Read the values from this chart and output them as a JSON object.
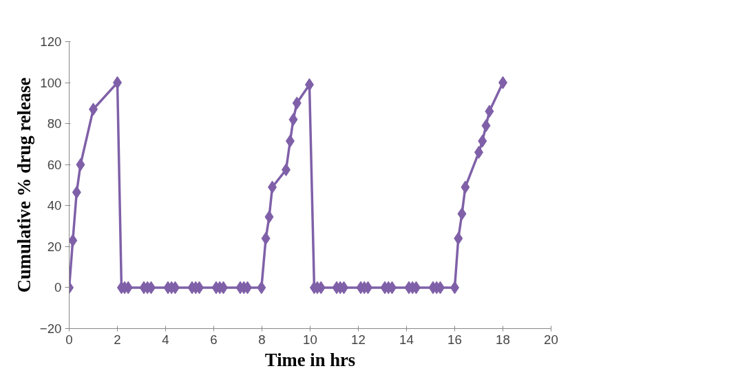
{
  "chart_data": {
    "type": "line",
    "xlabel": "Time in hrs",
    "ylabel": "Cumulative % drug release",
    "xlim": [
      0,
      20
    ],
    "xticks": [
      0,
      2,
      4,
      6,
      8,
      10,
      12,
      14,
      16,
      18,
      20
    ],
    "ylim": [
      -20,
      120
    ],
    "yticks": [
      -20,
      0,
      20,
      40,
      60,
      80,
      100,
      120
    ],
    "grid": false,
    "marker": "diamond",
    "line_style": "solid",
    "series": [
      {
        "color": "#7f60a8",
        "x": [
          0,
          0.15,
          0.31,
          0.47,
          1.0,
          2.0,
          2.17,
          2.3,
          2.45,
          3.1,
          3.25,
          3.4,
          4.1,
          4.25,
          4.4,
          5.1,
          5.25,
          5.4,
          6.1,
          6.25,
          6.4,
          7.1,
          7.25,
          7.4,
          7.98,
          8.16,
          8.3,
          8.43,
          9.0,
          9.17,
          9.3,
          9.45,
          9.97,
          10.17,
          10.3,
          10.45,
          11.1,
          11.25,
          11.4,
          12.1,
          12.25,
          12.4,
          13.1,
          13.25,
          13.4,
          14.1,
          14.25,
          14.4,
          15.1,
          15.25,
          15.4,
          16.0,
          16.15,
          16.3,
          16.44,
          17.0,
          17.15,
          17.3,
          17.44,
          18.0
        ],
        "values": [
          0,
          23,
          46.5,
          60,
          87,
          100,
          0,
          0,
          0,
          0,
          0,
          0,
          0,
          0,
          0,
          0,
          0,
          0,
          0,
          0,
          0,
          0,
          0,
          0,
          0,
          24,
          34.5,
          49,
          57.5,
          71.5,
          82,
          90,
          99,
          0,
          0,
          0,
          0,
          0,
          0,
          0,
          0,
          0,
          0,
          0,
          0,
          0,
          0,
          0,
          0,
          0,
          0,
          0,
          24,
          36,
          49,
          66,
          71.5,
          79,
          86,
          100
        ]
      }
    ]
  }
}
